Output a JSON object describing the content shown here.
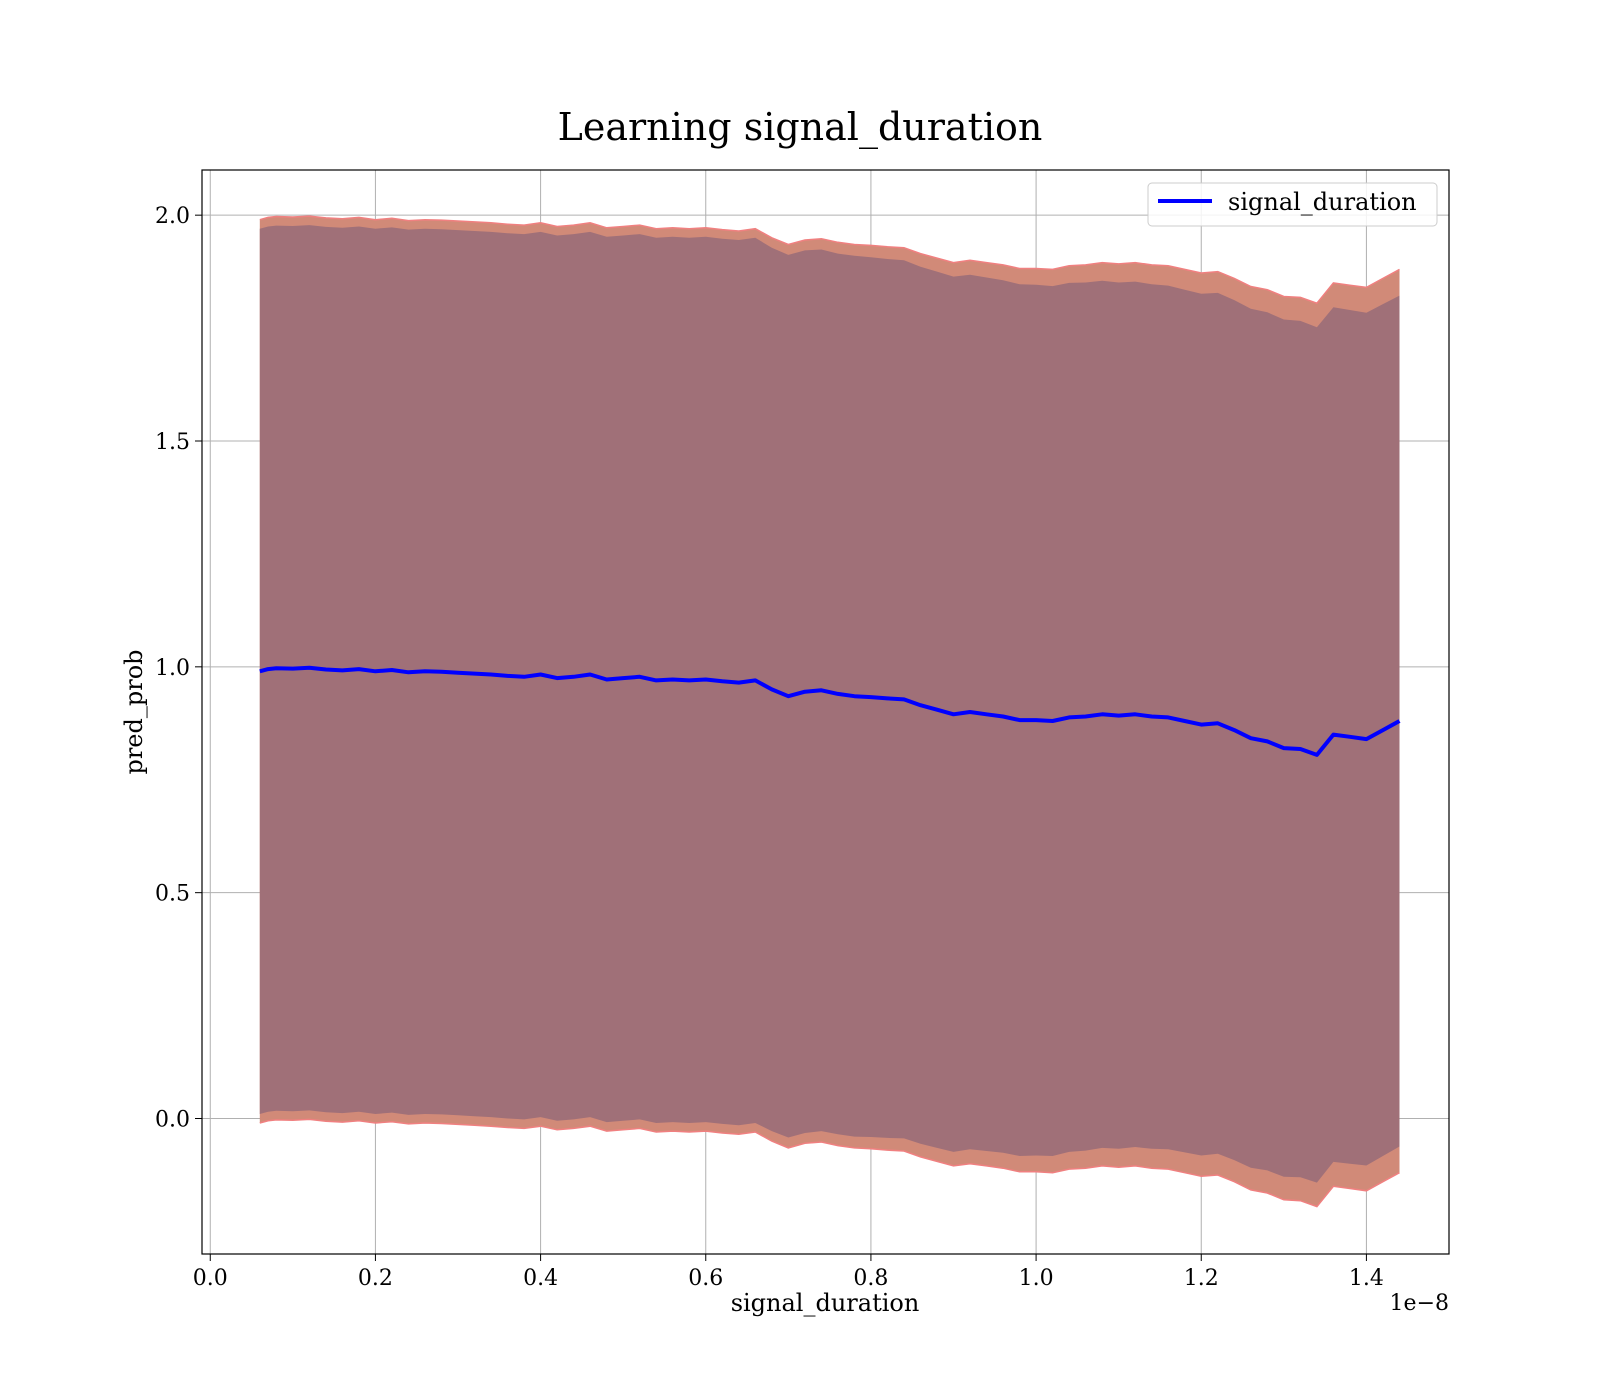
{
  "chart_data": {
    "type": "line",
    "title": "Learning signal_duration",
    "xlabel": "signal_duration",
    "ylabel": "pred_prob",
    "x_offset_label": "1e−8",
    "x_unit_scale": 1e-08,
    "xlim": [
      -0.01,
      1.5
    ],
    "ylim": [
      -0.3,
      2.1
    ],
    "x_ticks": [
      "0.0",
      "0.2",
      "0.4",
      "0.6",
      "0.8",
      "1.0",
      "1.2",
      "1.4"
    ],
    "y_ticks": [
      "0.0",
      "0.5",
      "1.0",
      "1.5",
      "2.0"
    ],
    "grid": true,
    "legend_position": "top-right",
    "colors": {
      "line": "#0000ff",
      "band_outer": "#d18a78",
      "band_inner": "#a07078",
      "band_edge": "#f08080"
    },
    "series": [
      {
        "name": "signal_duration",
        "x": [
          0.06,
          0.07,
          0.08,
          0.1,
          0.12,
          0.14,
          0.16,
          0.18,
          0.2,
          0.22,
          0.24,
          0.26,
          0.28,
          0.3,
          0.32,
          0.34,
          0.36,
          0.38,
          0.4,
          0.42,
          0.44,
          0.46,
          0.48,
          0.5,
          0.52,
          0.54,
          0.56,
          0.58,
          0.6,
          0.62,
          0.64,
          0.66,
          0.68,
          0.7,
          0.72,
          0.74,
          0.76,
          0.78,
          0.8,
          0.82,
          0.84,
          0.86,
          0.88,
          0.9,
          0.92,
          0.94,
          0.96,
          0.98,
          1.0,
          1.02,
          1.04,
          1.06,
          1.08,
          1.1,
          1.12,
          1.14,
          1.16,
          1.18,
          1.2,
          1.22,
          1.24,
          1.26,
          1.28,
          1.3,
          1.32,
          1.34,
          1.36,
          1.38,
          1.4,
          1.42,
          1.44
        ],
        "values": [
          0.99,
          0.995,
          0.997,
          0.996,
          0.998,
          0.994,
          0.992,
          0.995,
          0.99,
          0.993,
          0.988,
          0.99,
          0.989,
          0.987,
          0.985,
          0.983,
          0.98,
          0.978,
          0.983,
          0.975,
          0.978,
          0.983,
          0.972,
          0.975,
          0.978,
          0.97,
          0.972,
          0.97,
          0.972,
          0.968,
          0.965,
          0.97,
          0.95,
          0.935,
          0.945,
          0.948,
          0.94,
          0.935,
          0.933,
          0.93,
          0.928,
          0.915,
          0.905,
          0.895,
          0.9,
          0.895,
          0.89,
          0.882,
          0.882,
          0.88,
          0.888,
          0.89,
          0.895,
          0.892,
          0.895,
          0.89,
          0.888,
          0.88,
          0.872,
          0.875,
          0.86,
          0.842,
          0.835,
          0.82,
          0.818,
          0.805,
          0.85,
          0.845,
          0.84,
          0.86,
          0.88
        ],
        "band_upper_outer": [
          1.99,
          1.995,
          1.997,
          1.996,
          1.998,
          1.994,
          1.992,
          1.995,
          1.99,
          1.993,
          1.988,
          1.99,
          1.989,
          1.987,
          1.985,
          1.983,
          1.98,
          1.978,
          1.983,
          1.975,
          1.978,
          1.983,
          1.972,
          1.975,
          1.978,
          1.97,
          1.972,
          1.97,
          1.972,
          1.968,
          1.965,
          1.97,
          1.95,
          1.935,
          1.945,
          1.948,
          1.94,
          1.935,
          1.933,
          1.93,
          1.928,
          1.915,
          1.905,
          1.895,
          1.9,
          1.895,
          1.89,
          1.882,
          1.882,
          1.88,
          1.888,
          1.89,
          1.895,
          1.892,
          1.895,
          1.89,
          1.888,
          1.88,
          1.872,
          1.875,
          1.86,
          1.842,
          1.835,
          1.82,
          1.818,
          1.805,
          1.85,
          1.845,
          1.84,
          1.86,
          1.88
        ],
        "band_upper_inner": [
          1.97,
          1.975,
          1.977,
          1.976,
          1.978,
          1.974,
          1.972,
          1.975,
          1.97,
          1.973,
          1.968,
          1.97,
          1.969,
          1.967,
          1.965,
          1.963,
          1.96,
          1.958,
          1.963,
          1.955,
          1.958,
          1.963,
          1.952,
          1.955,
          1.958,
          1.95,
          1.952,
          1.95,
          1.952,
          1.948,
          1.945,
          1.95,
          1.928,
          1.912,
          1.922,
          1.924,
          1.915,
          1.91,
          1.907,
          1.903,
          1.9,
          1.886,
          1.875,
          1.864,
          1.868,
          1.862,
          1.856,
          1.847,
          1.846,
          1.843,
          1.85,
          1.851,
          1.855,
          1.851,
          1.853,
          1.847,
          1.844,
          1.835,
          1.826,
          1.828,
          1.812,
          1.793,
          1.785,
          1.769,
          1.766,
          1.752,
          1.796,
          1.79,
          1.784,
          1.803,
          1.822
        ],
        "band_lower_inner": [
          0.01,
          0.015,
          0.017,
          0.016,
          0.018,
          0.014,
          0.012,
          0.015,
          0.01,
          0.013,
          0.008,
          0.01,
          0.009,
          0.007,
          0.005,
          0.003,
          0.0,
          -0.002,
          0.003,
          -0.005,
          -0.002,
          0.003,
          -0.008,
          -0.005,
          -0.002,
          -0.01,
          -0.008,
          -0.01,
          -0.008,
          -0.012,
          -0.015,
          -0.01,
          -0.028,
          -0.042,
          -0.032,
          -0.028,
          -0.035,
          -0.04,
          -0.041,
          -0.043,
          -0.044,
          -0.056,
          -0.065,
          -0.074,
          -0.068,
          -0.072,
          -0.076,
          -0.083,
          -0.082,
          -0.083,
          -0.074,
          -0.071,
          -0.065,
          -0.067,
          -0.063,
          -0.067,
          -0.068,
          -0.075,
          -0.082,
          -0.078,
          -0.092,
          -0.109,
          -0.115,
          -0.129,
          -0.13,
          -0.142,
          -0.096,
          -0.1,
          -0.104,
          -0.083,
          -0.062
        ],
        "band_lower_outer": [
          -0.01,
          -0.005,
          -0.003,
          -0.004,
          -0.002,
          -0.006,
          -0.008,
          -0.005,
          -0.01,
          -0.007,
          -0.012,
          -0.01,
          -0.011,
          -0.013,
          -0.015,
          -0.017,
          -0.02,
          -0.022,
          -0.017,
          -0.025,
          -0.022,
          -0.017,
          -0.028,
          -0.025,
          -0.022,
          -0.03,
          -0.028,
          -0.03,
          -0.028,
          -0.032,
          -0.035,
          -0.03,
          -0.05,
          -0.065,
          -0.055,
          -0.052,
          -0.06,
          -0.065,
          -0.067,
          -0.07,
          -0.072,
          -0.085,
          -0.095,
          -0.105,
          -0.1,
          -0.105,
          -0.11,
          -0.118,
          -0.118,
          -0.12,
          -0.112,
          -0.11,
          -0.105,
          -0.108,
          -0.105,
          -0.11,
          -0.112,
          -0.12,
          -0.128,
          -0.125,
          -0.14,
          -0.158,
          -0.165,
          -0.18,
          -0.182,
          -0.195,
          -0.15,
          -0.155,
          -0.16,
          -0.14,
          -0.12
        ]
      }
    ]
  }
}
